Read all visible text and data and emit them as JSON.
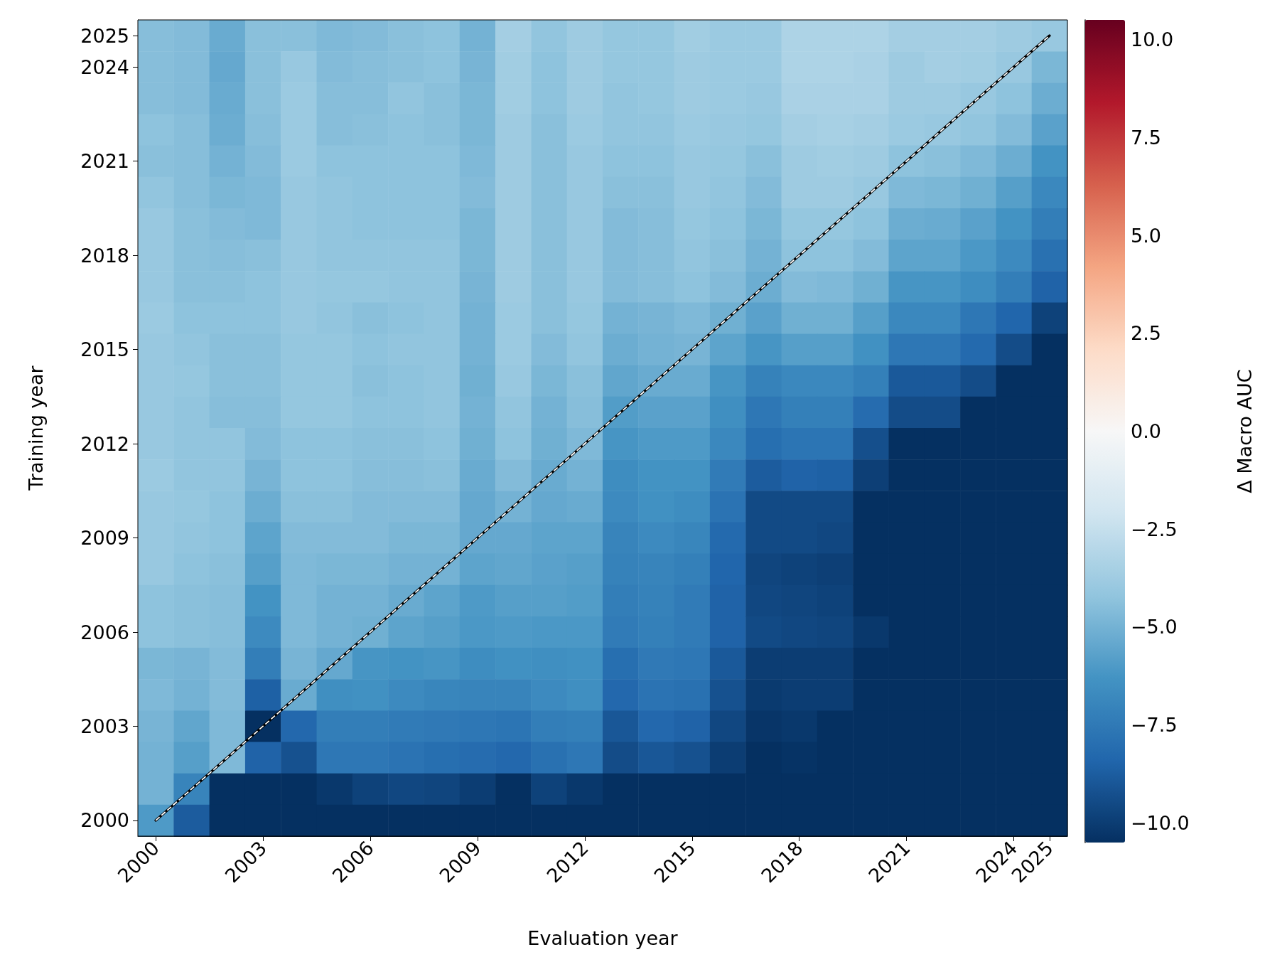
{
  "chart_data": {
    "type": "heatmap",
    "xlabel": "Evaluation year",
    "ylabel": "Training year",
    "clabel": "Δ Macro AUC",
    "x": [
      2000,
      2001,
      2002,
      2003,
      2004,
      2005,
      2006,
      2007,
      2008,
      2009,
      2010,
      2011,
      2012,
      2013,
      2014,
      2015,
      2016,
      2017,
      2018,
      2019,
      2020,
      2021,
      2022,
      2023,
      2024,
      2025
    ],
    "xlim": [
      1999.5,
      2025.5
    ],
    "xticks": [
      2000,
      2003,
      2006,
      2009,
      2012,
      2015,
      2018,
      2021,
      2024,
      2025
    ],
    "ylim": [
      1999.5,
      2025.5
    ],
    "yticks": [
      2000,
      2003,
      2006,
      2009,
      2012,
      2015,
      2018,
      2021,
      2024,
      2025
    ],
    "cells": [
      [
        -4.5,
        -4.6,
        -5.3,
        -4.4,
        -4.4,
        -4.7,
        -4.6,
        -4.4,
        -4.3,
        -5.0,
        -3.6,
        -4.2,
        -3.8,
        -4.1,
        -4.1,
        -3.7,
        -3.9,
        -3.9,
        -3.3,
        -3.3,
        -3.3,
        -3.6,
        -3.6,
        -3.6,
        -3.8,
        -4.0
      ],
      [
        -4.5,
        -4.6,
        -5.4,
        -4.4,
        -4.0,
        -4.6,
        -4.5,
        -4.4,
        -4.3,
        -4.9,
        -3.7,
        -4.3,
        -3.8,
        -4.1,
        -4.1,
        -3.8,
        -3.9,
        -3.9,
        -3.3,
        -3.3,
        -3.4,
        -3.8,
        -3.6,
        -3.7,
        -4.0,
        -4.8
      ],
      [
        -4.5,
        -4.6,
        -5.3,
        -4.4,
        -3.9,
        -4.5,
        -4.5,
        -4.2,
        -4.4,
        -4.8,
        -3.7,
        -4.3,
        -3.8,
        -4.2,
        -4.1,
        -3.8,
        -3.9,
        -4.0,
        -3.4,
        -3.4,
        -3.4,
        -3.8,
        -3.8,
        -4.0,
        -4.3,
        -5.2
      ],
      [
        -4.3,
        -4.5,
        -5.2,
        -4.5,
        -3.9,
        -4.5,
        -4.4,
        -4.3,
        -4.4,
        -4.8,
        -3.8,
        -4.4,
        -3.9,
        -4.2,
        -4.2,
        -3.9,
        -4.0,
        -4.1,
        -3.6,
        -3.5,
        -3.6,
        -3.9,
        -4.0,
        -4.2,
        -4.6,
        -5.7
      ],
      [
        -4.4,
        -4.5,
        -5.0,
        -4.6,
        -3.9,
        -4.3,
        -4.3,
        -4.3,
        -4.3,
        -4.7,
        -3.8,
        -4.4,
        -4.0,
        -4.3,
        -4.3,
        -4.0,
        -4.1,
        -4.4,
        -3.8,
        -3.7,
        -3.8,
        -4.3,
        -4.4,
        -4.7,
        -5.2,
        -6.3
      ],
      [
        -4.2,
        -4.5,
        -4.8,
        -4.7,
        -4.0,
        -4.2,
        -4.3,
        -4.3,
        -4.3,
        -4.6,
        -3.8,
        -4.4,
        -4.0,
        -4.4,
        -4.4,
        -4.0,
        -4.2,
        -4.6,
        -3.8,
        -3.8,
        -4.0,
        -4.7,
        -4.8,
        -5.1,
        -5.8,
        -6.8
      ],
      [
        -4.0,
        -4.4,
        -4.6,
        -4.7,
        -4.0,
        -4.2,
        -4.3,
        -4.3,
        -4.3,
        -4.8,
        -3.8,
        -4.4,
        -4.0,
        -4.6,
        -4.5,
        -4.1,
        -4.3,
        -4.8,
        -4.1,
        -4.1,
        -4.3,
        -5.2,
        -5.3,
        -5.7,
        -6.3,
        -7.3
      ],
      [
        -4.0,
        -4.4,
        -4.5,
        -4.4,
        -4.0,
        -4.2,
        -4.2,
        -4.2,
        -4.2,
        -4.8,
        -3.8,
        -4.4,
        -4.0,
        -4.6,
        -4.5,
        -4.2,
        -4.4,
        -5.0,
        -4.3,
        -4.3,
        -4.6,
        -5.6,
        -5.6,
        -6.1,
        -6.7,
        -7.9
      ],
      [
        -4.0,
        -4.4,
        -4.4,
        -4.3,
        -4.0,
        -4.1,
        -4.1,
        -4.2,
        -4.2,
        -4.9,
        -3.8,
        -4.4,
        -4.0,
        -4.6,
        -4.5,
        -4.3,
        -4.6,
        -5.2,
        -4.6,
        -4.7,
        -5.1,
        -6.2,
        -6.2,
        -6.6,
        -7.3,
        -8.5
      ],
      [
        -3.9,
        -4.3,
        -4.3,
        -4.3,
        -4.0,
        -4.2,
        -4.4,
        -4.3,
        -4.2,
        -5.0,
        -3.9,
        -4.4,
        -4.1,
        -5.0,
        -4.9,
        -4.7,
        -5.1,
        -5.7,
        -5.1,
        -5.1,
        -5.8,
        -6.8,
        -6.8,
        -7.6,
        -8.4,
        -9.8
      ],
      [
        -4.0,
        -4.2,
        -4.4,
        -4.4,
        -4.1,
        -4.1,
        -4.3,
        -4.2,
        -4.2,
        -5.0,
        -3.9,
        -4.6,
        -4.2,
        -5.2,
        -5.0,
        -4.9,
        -5.6,
        -6.2,
        -5.8,
        -5.8,
        -6.4,
        -7.6,
        -7.6,
        -8.2,
        -9.4,
        -10.5
      ],
      [
        -4.0,
        -4.1,
        -4.4,
        -4.4,
        -4.1,
        -4.1,
        -4.4,
        -4.3,
        -4.2,
        -5.1,
        -4.0,
        -4.8,
        -4.4,
        -5.5,
        -5.3,
        -5.3,
        -6.2,
        -7.1,
        -6.8,
        -6.8,
        -7.2,
        -8.9,
        -8.9,
        -9.4,
        -10.5,
        -10.5
      ],
      [
        -4.0,
        -4.2,
        -4.5,
        -4.5,
        -4.1,
        -4.1,
        -4.3,
        -4.3,
        -4.2,
        -5.0,
        -4.2,
        -5.0,
        -4.5,
        -5.9,
        -5.7,
        -5.7,
        -6.5,
        -7.6,
        -7.2,
        -7.2,
        -8.1,
        -9.4,
        -9.4,
        -10.5,
        -10.5,
        -10.5
      ],
      [
        -4.0,
        -4.2,
        -4.2,
        -4.6,
        -4.3,
        -4.3,
        -4.4,
        -4.4,
        -4.3,
        -5.1,
        -4.3,
        -5.1,
        -4.7,
        -6.2,
        -6.0,
        -6.0,
        -6.8,
        -8.0,
        -7.7,
        -7.7,
        -9.3,
        -10.5,
        -10.5,
        -10.5,
        -10.5,
        -10.5
      ],
      [
        -3.9,
        -4.2,
        -4.2,
        -4.9,
        -4.3,
        -4.3,
        -4.5,
        -4.5,
        -4.4,
        -5.3,
        -4.6,
        -5.3,
        -5.0,
        -6.6,
        -6.3,
        -6.3,
        -7.4,
        -8.8,
        -8.5,
        -8.6,
        -9.9,
        -10.5,
        -10.5,
        -10.5,
        -10.5,
        -10.5
      ],
      [
        -4.0,
        -4.1,
        -4.3,
        -5.2,
        -4.4,
        -4.4,
        -4.6,
        -4.6,
        -4.6,
        -5.4,
        -5.0,
        -5.4,
        -5.3,
        -6.7,
        -6.4,
        -6.6,
        -7.8,
        -9.5,
        -9.5,
        -9.5,
        -10.5,
        -10.5,
        -10.5,
        -10.5,
        -10.5,
        -10.5
      ],
      [
        -4.0,
        -4.2,
        -4.3,
        -5.6,
        -4.6,
        -4.6,
        -4.6,
        -4.8,
        -4.8,
        -5.4,
        -5.4,
        -5.6,
        -5.6,
        -7.0,
        -6.7,
        -6.9,
        -8.2,
        -9.5,
        -9.5,
        -9.6,
        -10.5,
        -10.5,
        -10.5,
        -10.5,
        -10.5,
        -10.5
      ],
      [
        -4.0,
        -4.3,
        -4.4,
        -5.8,
        -4.7,
        -4.8,
        -4.8,
        -5.0,
        -5.0,
        -5.6,
        -5.5,
        -5.7,
        -5.8,
        -7.1,
        -7.0,
        -7.2,
        -8.4,
        -9.7,
        -9.8,
        -9.9,
        -10.5,
        -10.5,
        -10.5,
        -10.5,
        -10.5,
        -10.5
      ],
      [
        -4.3,
        -4.4,
        -4.5,
        -6.3,
        -4.7,
        -5.0,
        -5.0,
        -5.3,
        -5.6,
        -6.0,
        -5.8,
        -5.8,
        -5.9,
        -7.3,
        -7.1,
        -7.4,
        -8.5,
        -9.6,
        -9.7,
        -9.8,
        -10.5,
        -10.5,
        -10.5,
        -10.5,
        -10.5,
        -10.5
      ],
      [
        -4.3,
        -4.4,
        -4.5,
        -6.7,
        -4.7,
        -5.0,
        -5.1,
        -5.6,
        -5.8,
        -6.1,
        -6.0,
        -6.1,
        -6.1,
        -7.4,
        -7.2,
        -7.4,
        -8.5,
        -9.5,
        -9.6,
        -9.7,
        -10.2,
        -10.5,
        -10.5,
        -10.5,
        -10.5,
        -10.5
      ],
      [
        -4.8,
        -4.9,
        -4.6,
        -7.3,
        -4.9,
        -5.4,
        -6.2,
        -6.3,
        -6.2,
        -6.6,
        -6.4,
        -6.5,
        -6.4,
        -8.0,
        -7.5,
        -7.6,
        -8.9,
        -10.0,
        -10.0,
        -10.0,
        -10.5,
        -10.5,
        -10.5,
        -10.5,
        -10.5,
        -10.5
      ],
      [
        -4.7,
        -5.0,
        -4.6,
        -8.6,
        -5.3,
        -6.5,
        -6.4,
        -6.7,
        -6.9,
        -7.0,
        -7.0,
        -6.7,
        -6.5,
        -8.3,
        -7.8,
        -7.9,
        -9.2,
        -10.1,
        -10.0,
        -10.0,
        -10.5,
        -10.5,
        -10.5,
        -10.5,
        -10.5,
        -10.5
      ],
      [
        -4.9,
        -5.5,
        -4.7,
        -10.5,
        -8.3,
        -7.3,
        -7.3,
        -7.4,
        -7.5,
        -7.6,
        -7.7,
        -7.3,
        -7.2,
        -9.0,
        -8.3,
        -8.5,
        -9.6,
        -10.3,
        -10.2,
        -10.5,
        -10.5,
        -10.5,
        -10.5,
        -10.5,
        -10.5,
        -10.5
      ],
      [
        -5.0,
        -5.8,
        -4.7,
        -8.5,
        -9.2,
        -7.6,
        -7.6,
        -7.8,
        -8.0,
        -8.1,
        -8.3,
        -7.9,
        -7.6,
        -9.4,
        -9.0,
        -9.2,
        -10.0,
        -10.5,
        -10.4,
        -10.5,
        -10.5,
        -10.5,
        -10.5,
        -10.5,
        -10.5,
        -10.5
      ],
      [
        -5.0,
        -7.0,
        -10.5,
        -10.5,
        -10.5,
        -10.2,
        -9.8,
        -9.6,
        -9.7,
        -10.0,
        -10.5,
        -9.8,
        -10.2,
        -10.5,
        -10.5,
        -10.5,
        -10.5,
        -10.5,
        -10.5,
        -10.5,
        -10.5,
        -10.5,
        -10.5,
        -10.5,
        -10.5,
        -10.5
      ],
      [
        -6.0,
        -8.8,
        -10.5,
        -10.5,
        -10.5,
        -10.5,
        -10.5,
        -10.5,
        -10.5,
        -10.5,
        -10.5,
        -10.5,
        -10.5,
        -10.5,
        -10.5,
        -10.5,
        -10.5,
        -10.5,
        -10.5,
        -10.5,
        -10.5,
        -10.5,
        -10.5,
        -10.5,
        -10.5,
        -10.5
      ]
    ],
    "clim": [
      -10.5,
      10.5
    ],
    "cticks": [
      {
        "value": -10,
        "label": "−10.0"
      },
      {
        "value": -7.5,
        "label": "−7.5"
      },
      {
        "value": -5,
        "label": "−5.0"
      },
      {
        "value": -2.5,
        "label": "−2.5"
      },
      {
        "value": 0,
        "label": "0.0"
      },
      {
        "value": 2.5,
        "label": "2.5"
      },
      {
        "value": 5,
        "label": "5.0"
      },
      {
        "value": 7.5,
        "label": "7.5"
      },
      {
        "value": 10,
        "label": "10.0"
      }
    ],
    "series": [
      {
        "type": "line",
        "x": [
          2000,
          2025
        ],
        "values": [
          2000,
          2025
        ],
        "color": "#ffffff",
        "line_style": "dashed"
      }
    ]
  }
}
